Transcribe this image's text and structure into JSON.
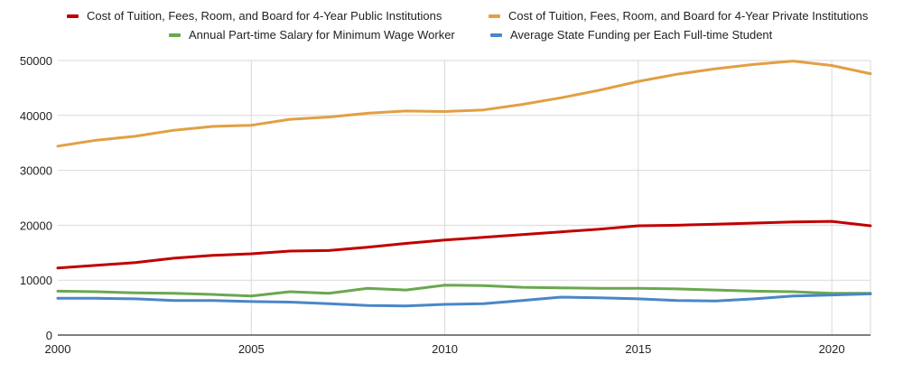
{
  "chart_data": {
    "type": "line",
    "title": "",
    "xlabel": "",
    "ylabel": "",
    "xlim": [
      2000,
      2021
    ],
    "ylim": [
      0,
      50000
    ],
    "grid": true,
    "legend_position": "top",
    "x_ticks": [
      2000,
      2005,
      2010,
      2015,
      2020
    ],
    "y_ticks": [
      0,
      10000,
      20000,
      30000,
      40000,
      50000
    ],
    "x": [
      2000,
      2001,
      2002,
      2003,
      2004,
      2005,
      2006,
      2007,
      2008,
      2009,
      2010,
      2011,
      2012,
      2013,
      2014,
      2015,
      2016,
      2017,
      2018,
      2019,
      2020,
      2021
    ],
    "series": [
      {
        "name": "Cost of Tuition, Fees, Room, and Board for 4-Year Public Institutions",
        "color": "#c00000",
        "values": [
          12200,
          12700,
          13200,
          14000,
          14500,
          14800,
          15300,
          15400,
          16000,
          16700,
          17300,
          17800,
          18300,
          18800,
          19300,
          19900,
          20000,
          20200,
          20400,
          20600,
          20700,
          19900
        ]
      },
      {
        "name": "Cost of Tuition, Fees, Room, and Board for 4-Year Private Institutions",
        "color": "#e1a043",
        "values": [
          34400,
          35500,
          36200,
          37300,
          38000,
          38200,
          39300,
          39700,
          40400,
          40800,
          40700,
          41000,
          42000,
          43200,
          44600,
          46200,
          47500,
          48500,
          49300,
          49900,
          49100,
          47600
        ]
      },
      {
        "name": "Annual Part-time Salary for Minimum Wage Worker",
        "color": "#6aa84f",
        "values": [
          8000,
          7900,
          7700,
          7600,
          7400,
          7100,
          7900,
          7600,
          8500,
          8200,
          9100,
          9000,
          8700,
          8600,
          8500,
          8500,
          8400,
          8200,
          8000,
          7900,
          7600,
          7600
        ]
      },
      {
        "name": "Average State Funding per Each Full-time Student",
        "color": "#4a86c8",
        "values": [
          6700,
          6700,
          6600,
          6300,
          6300,
          6100,
          6000,
          5700,
          5400,
          5300,
          5600,
          5700,
          6300,
          6900,
          6800,
          6600,
          6300,
          6200,
          6600,
          7100,
          7300,
          7500
        ]
      }
    ]
  }
}
